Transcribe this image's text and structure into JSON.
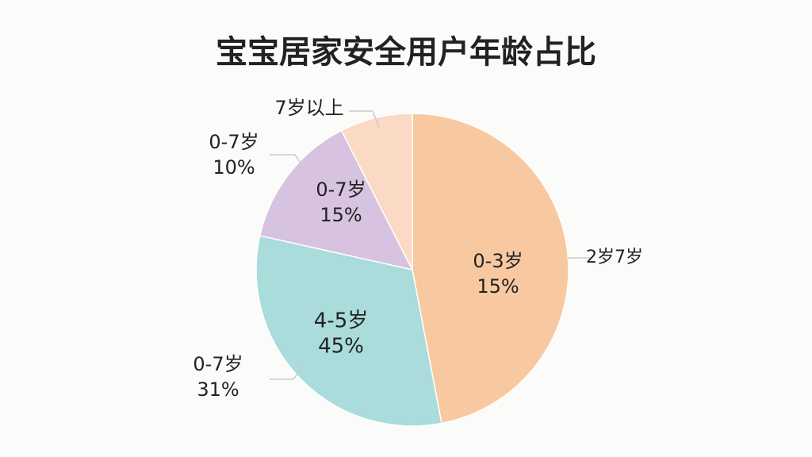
{
  "chart_data": {
    "type": "pie",
    "title": "宝宝居家安全用户年龄占比",
    "values": [
      47,
      31.5,
      14,
      7.5
    ],
    "colors": [
      "#f8c9a0",
      "#a9dcdb",
      "#d7c3df",
      "#fad9c5"
    ],
    "annotations": [
      {
        "lines": [
          "7岁以上"
        ]
      },
      {
        "lines": [
          "0-7岁",
          "10%"
        ]
      },
      {
        "lines": [
          "0-7岁",
          "15%"
        ]
      },
      {
        "lines": [
          "0-3岁",
          "15%"
        ]
      },
      {
        "lines": [
          "2岁7岁"
        ]
      },
      {
        "lines": [
          "4-5岁",
          "45%"
        ]
      },
      {
        "lines": [
          "0-7岁",
          "31%"
        ]
      }
    ]
  }
}
